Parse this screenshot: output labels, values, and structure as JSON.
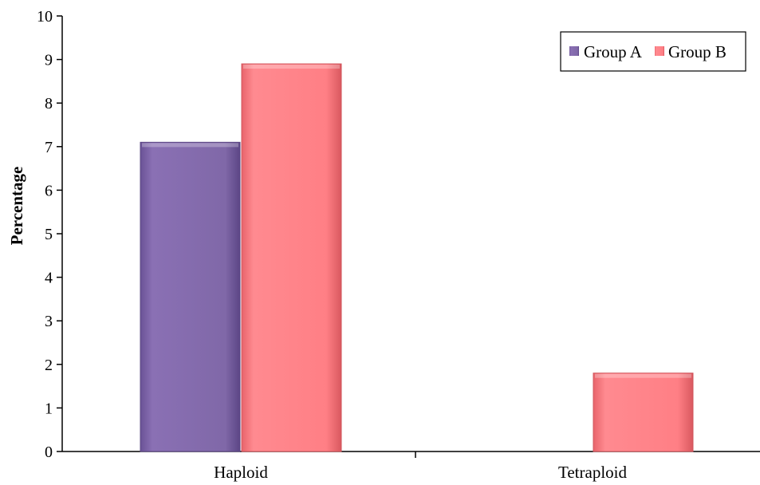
{
  "chart_data": {
    "type": "bar",
    "categories": [
      "Haploid",
      "Tetraploid"
    ],
    "series": [
      {
        "name": "Group A",
        "values": [
          7.1,
          0
        ],
        "color": "#8068a8"
      },
      {
        "name": "Group B",
        "values": [
          8.9,
          1.8
        ],
        "color": "#ff7f85"
      }
    ],
    "title": "",
    "xlabel": "",
    "ylabel": "Percentage",
    "ylim": [
      0,
      10
    ],
    "yticks": [
      "0",
      "1",
      "2",
      "3",
      "4",
      "5",
      "6",
      "7",
      "8",
      "9",
      "10"
    ],
    "grid": false,
    "legend_position": "top-right"
  }
}
